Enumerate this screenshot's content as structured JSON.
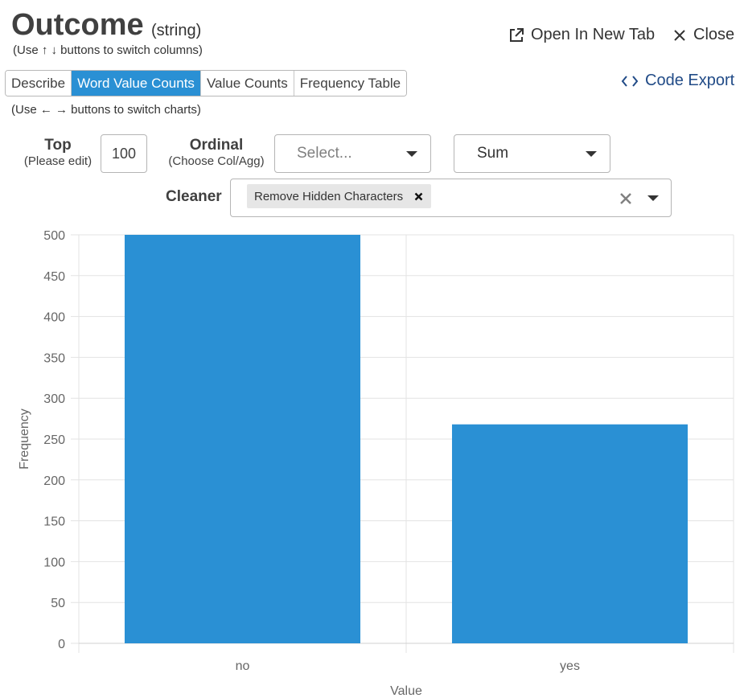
{
  "header": {
    "title": "Outcome",
    "dtype": "(string)",
    "column_hint": "(Use ↑ ↓ buttons to switch columns)",
    "open_new_tab": "Open In New Tab",
    "close": "Close"
  },
  "tabs": [
    {
      "label": "Describe",
      "active": false
    },
    {
      "label": "Word Value Counts",
      "active": true
    },
    {
      "label": "Value Counts",
      "active": false
    },
    {
      "label": "Frequency Table",
      "active": false
    }
  ],
  "code_export": "Code Export",
  "chart_hint": "(Use ← → buttons to switch charts)",
  "controls": {
    "top_label": "Top",
    "top_sub": "(Please edit)",
    "top_value": "100",
    "ordinal_label": "Ordinal",
    "ordinal_sub": "(Choose Col/Agg)",
    "ordinal_placeholder": "Select...",
    "agg_value": "Sum",
    "cleaner_label": "Cleaner",
    "cleaner_tag": "Remove Hidden Characters"
  },
  "colors": {
    "accent": "#2a90d4",
    "bar": "#2a90d4",
    "link": "#214b87"
  },
  "chart_data": {
    "type": "bar",
    "categories": [
      "no",
      "yes"
    ],
    "values": [
      500,
      268
    ],
    "xlabel": "Value",
    "ylabel": "Frequency",
    "ylim": [
      0,
      500
    ],
    "yticks": [
      0,
      50,
      100,
      150,
      200,
      250,
      300,
      350,
      400,
      450,
      500
    ],
    "grid": true
  }
}
